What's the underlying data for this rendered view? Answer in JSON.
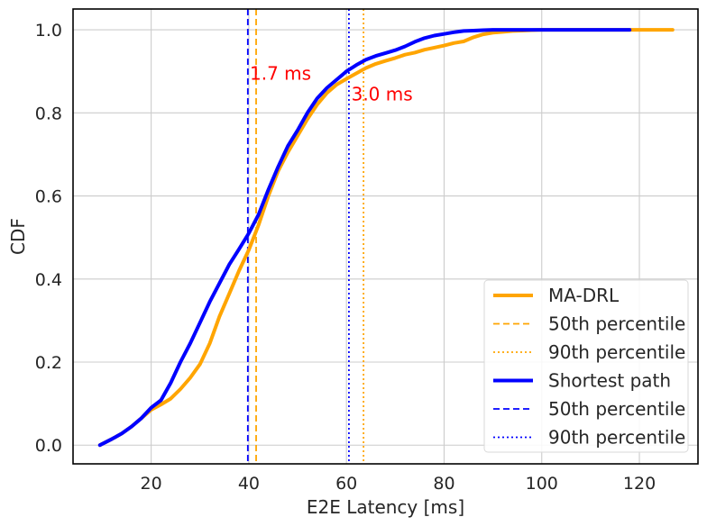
{
  "chart_data": {
    "type": "line",
    "title": "",
    "xlabel": "E2E Latency [ms]",
    "ylabel": "CDF",
    "xlim": [
      4,
      132
    ],
    "ylim": [
      -0.045,
      1.05
    ],
    "xticks": [
      20,
      40,
      60,
      80,
      100,
      120
    ],
    "yticks": [
      0.0,
      0.2,
      0.4,
      0.6,
      0.8,
      1.0
    ],
    "xtick_labels": [
      "20",
      "40",
      "60",
      "80",
      "100",
      "120"
    ],
    "ytick_labels": [
      "0.0",
      "0.2",
      "0.4",
      "0.6",
      "0.8",
      "1.0"
    ],
    "grid": true,
    "legend_position": "lower-right",
    "series": [
      {
        "name": "MA-DRL",
        "color": "#ffa500",
        "style": "solid",
        "x": [
          9.5,
          12,
          14,
          16,
          18,
          20,
          22,
          24,
          26,
          28,
          30,
          32,
          34,
          36,
          38,
          40,
          42,
          44,
          46,
          48,
          50,
          52,
          54,
          56,
          58,
          60,
          62,
          64,
          66,
          68,
          70,
          72,
          74,
          76,
          78,
          80,
          82,
          84,
          86,
          88,
          90,
          92,
          94,
          96,
          98,
          100,
          105,
          110,
          115,
          120,
          126.8
        ],
        "y": [
          0.0,
          0.015,
          0.028,
          0.045,
          0.065,
          0.085,
          0.098,
          0.112,
          0.135,
          0.162,
          0.195,
          0.245,
          0.31,
          0.365,
          0.42,
          0.47,
          0.53,
          0.6,
          0.66,
          0.705,
          0.745,
          0.785,
          0.82,
          0.848,
          0.868,
          0.882,
          0.895,
          0.908,
          0.918,
          0.925,
          0.932,
          0.94,
          0.945,
          0.952,
          0.957,
          0.962,
          0.968,
          0.972,
          0.982,
          0.989,
          0.993,
          0.995,
          0.997,
          0.998,
          0.999,
          1.0,
          1.0,
          1.0,
          1.0,
          1.0,
          1.0
        ]
      },
      {
        "name": "50th percentile",
        "color": "#ffa500",
        "style": "dashed",
        "x": 41.5
      },
      {
        "name": "90th percentile",
        "color": "#ffa500",
        "style": "dotted",
        "x": 63.5
      },
      {
        "name": "Shortest path",
        "color": "#0000ff",
        "style": "solid",
        "x": [
          9.5,
          12,
          14,
          16,
          18,
          20,
          22,
          24,
          26,
          28,
          30,
          32,
          34,
          36,
          38,
          40,
          42,
          44,
          46,
          48,
          50,
          52,
          54,
          56,
          58,
          60,
          62,
          64,
          66,
          68,
          70,
          72,
          74,
          76,
          78,
          80,
          82,
          84,
          86,
          88,
          90,
          95,
          100,
          105,
          110,
          118
        ],
        "y": [
          0.0,
          0.015,
          0.028,
          0.045,
          0.065,
          0.09,
          0.108,
          0.15,
          0.2,
          0.245,
          0.295,
          0.345,
          0.39,
          0.435,
          0.472,
          0.51,
          0.555,
          0.615,
          0.67,
          0.72,
          0.758,
          0.8,
          0.835,
          0.86,
          0.88,
          0.9,
          0.915,
          0.928,
          0.937,
          0.944,
          0.951,
          0.96,
          0.971,
          0.98,
          0.986,
          0.99,
          0.994,
          0.997,
          0.998,
          0.999,
          1.0,
          1.0,
          1.0,
          1.0,
          1.0,
          1.0
        ]
      },
      {
        "name": "50th percentile",
        "color": "#0000ff",
        "style": "dashed",
        "x": 39.8
      },
      {
        "name": "90th percentile",
        "color": "#0000ff",
        "style": "dotted",
        "x": 60.5
      }
    ],
    "annotations": [
      {
        "text": "1.7 ms",
        "x": 40.2,
        "y": 0.88,
        "color": "#ff0000"
      },
      {
        "text": "3.0 ms",
        "x": 61.0,
        "y": 0.83,
        "color": "#ff0000"
      }
    ]
  }
}
